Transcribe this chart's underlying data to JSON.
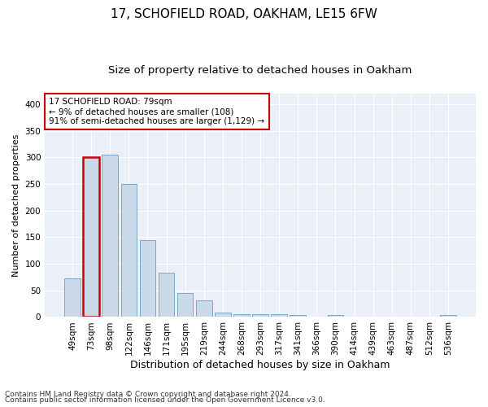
{
  "title": "17, SCHOFIELD ROAD, OAKHAM, LE15 6FW",
  "subtitle": "Size of property relative to detached houses in Oakham",
  "xlabel": "Distribution of detached houses by size in Oakham",
  "ylabel": "Number of detached properties",
  "categories": [
    "49sqm",
    "73sqm",
    "98sqm",
    "122sqm",
    "146sqm",
    "171sqm",
    "195sqm",
    "219sqm",
    "244sqm",
    "268sqm",
    "293sqm",
    "317sqm",
    "341sqm",
    "366sqm",
    "390sqm",
    "414sqm",
    "439sqm",
    "463sqm",
    "487sqm",
    "512sqm",
    "536sqm"
  ],
  "values": [
    72,
    300,
    305,
    250,
    145,
    83,
    45,
    32,
    9,
    6,
    6,
    6,
    3,
    0,
    4,
    0,
    0,
    0,
    0,
    0,
    3
  ],
  "bar_color": "#c9d9e8",
  "bar_edge_color": "#7aaac8",
  "highlight_bar_index": 1,
  "highlight_edge_color": "#cc0000",
  "annotation_line1": "17 SCHOFIELD ROAD: 79sqm",
  "annotation_line2": "← 9% of detached houses are smaller (108)",
  "annotation_line3": "91% of semi-detached houses are larger (1,129) →",
  "annotation_box_facecolor": "#ffffff",
  "annotation_box_edgecolor": "#cc0000",
  "ylim": [
    0,
    420
  ],
  "yticks": [
    0,
    50,
    100,
    150,
    200,
    250,
    300,
    350,
    400
  ],
  "background_color": "#eaeff8",
  "grid_color": "#ffffff",
  "footer_line1": "Contains HM Land Registry data © Crown copyright and database right 2024.",
  "footer_line2": "Contains public sector information licensed under the Open Government Licence v3.0.",
  "title_fontsize": 11,
  "subtitle_fontsize": 9.5,
  "xlabel_fontsize": 9,
  "ylabel_fontsize": 8,
  "tick_fontsize": 7.5,
  "annotation_fontsize": 7.5,
  "footer_fontsize": 6.5
}
